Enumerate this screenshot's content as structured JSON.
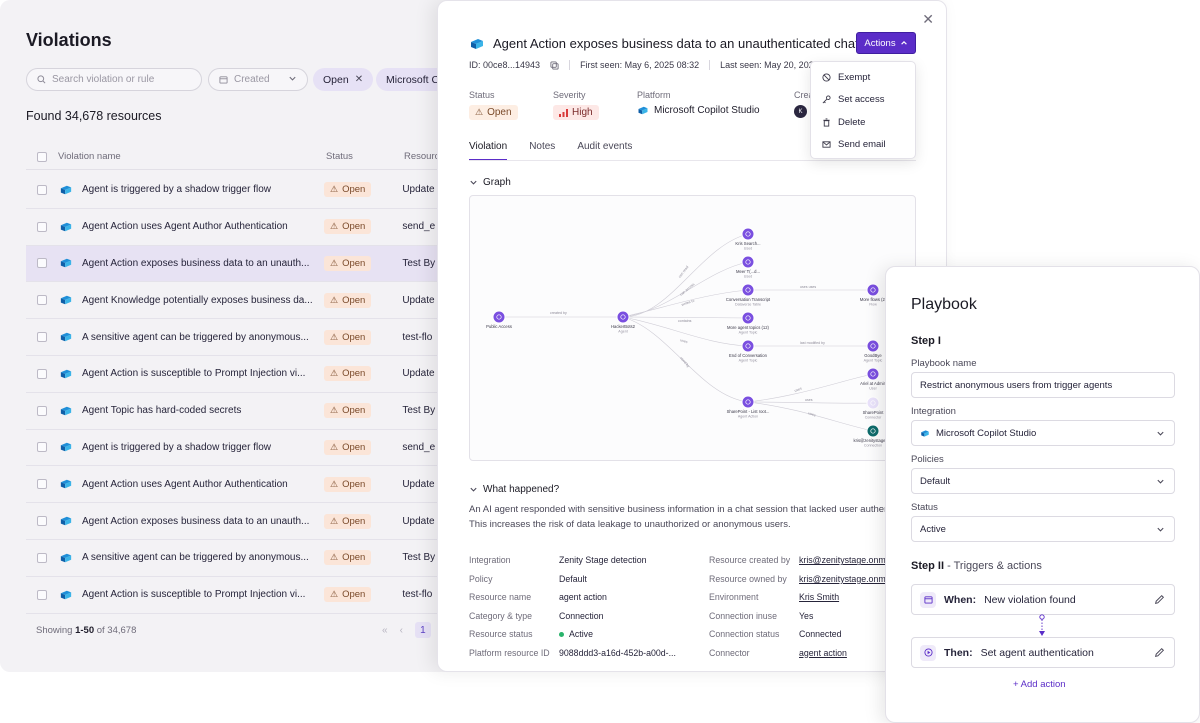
{
  "colors": {
    "accent": "#5b2dc8",
    "open_bg": "#fbe5d8",
    "high_bg": "#fde8e6",
    "selected_row": "#e7e2f3"
  },
  "list": {
    "title": "Violations",
    "search_placeholder": "Search violation or rule",
    "created_label": "Created",
    "chip_open": "Open",
    "chip_platform": "Microsoft Co",
    "found_text": "Found 34,678 resources",
    "columns": [
      "Violation name",
      "Status",
      "Resource"
    ],
    "rows": [
      {
        "name": "Agent is triggered by a shadow trigger flow",
        "status": "Open",
        "resource": "Update"
      },
      {
        "name": "Agent Action uses Agent Author Authentication",
        "status": "Open",
        "resource": "send_e"
      },
      {
        "name": "Agent Action exposes business data to an unauth...",
        "status": "Open",
        "resource": "Test By"
      },
      {
        "name": "Agent Knowledge potentially exposes business da...",
        "status": "Open",
        "resource": "Update"
      },
      {
        "name": "A sensitive agent can be triggered by anonymous...",
        "status": "Open",
        "resource": "test-flo"
      },
      {
        "name": "Agent Action is susceptible to Prompt Injection vi...",
        "status": "Open",
        "resource": "Update"
      },
      {
        "name": "Agent Topic has hard-coded secrets",
        "status": "Open",
        "resource": "Test By"
      },
      {
        "name": "Agent is triggered by a shadow trigger flow",
        "status": "Open",
        "resource": "send_e"
      },
      {
        "name": "Agent Action uses Agent Author Authentication",
        "status": "Open",
        "resource": "Update"
      },
      {
        "name": "Agent Action exposes business data to an unauth...",
        "status": "Open",
        "resource": "Update"
      },
      {
        "name": "A sensitive agent can be triggered by anonymous...",
        "status": "Open",
        "resource": "Test By"
      },
      {
        "name": "Agent Action is susceptible to Prompt Injection vi...",
        "status": "Open",
        "resource": "test-flo"
      }
    ],
    "footer_prefix": "Showing ",
    "footer_range": "1-50",
    "footer_suffix": " of 34,678",
    "current_page": "1"
  },
  "detail": {
    "title": "Agent Action exposes business data to an unauthenticated chat",
    "actions_label": "Actions",
    "id_text": "ID: 00ce8...14943",
    "first_seen": "First seen: May 6, 2025 08:32",
    "last_seen": "Last seen: May 20, 2025 09",
    "status_label": "Status",
    "status_value": "Open",
    "severity_label": "Severity",
    "severity_value": "High",
    "platform_label": "Platform",
    "platform_value": "Microsoft Copilot Studio",
    "creator_label": "Crea",
    "creator_initial": "K",
    "tabs": [
      "Violation",
      "Notes",
      "Audit events"
    ],
    "graph_heading": "Graph",
    "graph": {
      "nodes": [
        {
          "label": "Public Access",
          "sub": ""
        },
        {
          "label": "HackerBots2",
          "sub": "Agent"
        },
        {
          "label": "Kris Search...",
          "sub": "Used"
        },
        {
          "label": "Meer T(...d...",
          "sub": "Used"
        },
        {
          "label": "Conversation Transcript",
          "sub": "Dataverse Table"
        },
        {
          "label": "More agent topics (12)",
          "sub": "Agent Topic"
        },
        {
          "label": "End of Conversation",
          "sub": "Agent Topic"
        },
        {
          "label": "SharePoint - List root...",
          "sub": "Agent Action"
        },
        {
          "label": "More flows (2)",
          "sub": "Flow"
        },
        {
          "label": "GoodBye",
          "sub": "Agent Topic"
        },
        {
          "label": "Ariel at Admin",
          "sub": "User"
        },
        {
          "label": "SharePoint",
          "sub": "Connector"
        },
        {
          "label": "kris@zenitystage.o...",
          "sub": "Connection"
        }
      ],
      "edges": [
        "created by",
        "can read",
        "can access",
        "writes to",
        "contains",
        "uses",
        "used by",
        "uses uses",
        "last modified by",
        "uses",
        "uses"
      ]
    },
    "what_heading": "What happened?",
    "what_text": "An AI agent responded with sensitive business information in a chat session that lacked user authenti... This increases the risk of data leakage to unauthorized or anonymous users.",
    "fields": [
      {
        "k1": "Integration",
        "v1": "Zenity Stage detection",
        "k2": "Resource created by",
        "v2": "kris@zenitystage.onmi"
      },
      {
        "k1": "Policy",
        "v1": "Default",
        "k2": "Resource owned by",
        "v2": "kris@zenitystage.onmi"
      },
      {
        "k1": "Resource name",
        "v1": "agent action",
        "k2": "Environment",
        "v2": "Kris Smith"
      },
      {
        "k1": "Category & type",
        "v1": "Connection",
        "k2": "Connection inuse",
        "v2": "Yes"
      },
      {
        "k1": "Resource status",
        "v1": "Active",
        "k2": "Connection status",
        "v2": "Connected"
      },
      {
        "k1": "Platform resource ID",
        "v1": "9088ddd3-a16d-452b-a00d-...",
        "k2": "Connector",
        "v2": "agent action"
      }
    ]
  },
  "dropdown": {
    "items": [
      "Exempt",
      "Set access",
      "Delete",
      "Send email"
    ]
  },
  "playbook": {
    "title": "Playbook",
    "step1": "Step I",
    "name_label": "Playbook name",
    "name_value": "Restrict anonymous users from trigger agents",
    "integration_label": "Integration",
    "integration_value": "Microsoft Copilot Studio",
    "policies_label": "Policies",
    "policies_value": "Default",
    "status_label": "Status",
    "status_value": "Active",
    "step2": "Step II",
    "step2_sub": " - Triggers & actions",
    "when_label": "When:",
    "when_value": "New violation found",
    "then_label": "Then:",
    "then_value": "Set agent authentication",
    "add_action": "+ Add action"
  }
}
